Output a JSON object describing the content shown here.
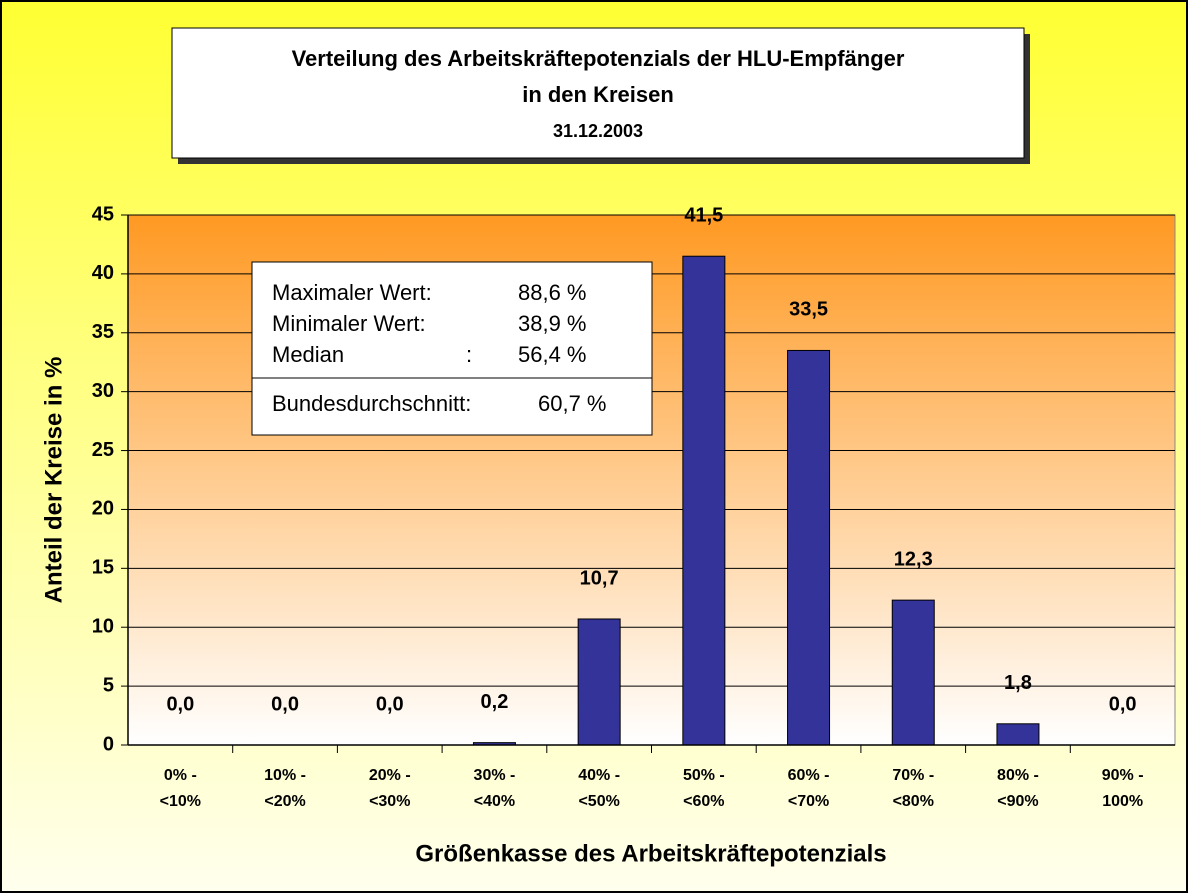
{
  "chart_data": {
    "type": "bar",
    "title_lines": [
      "Verteilung des Arbeitskräftepotenzials der HLU-Empfänger",
      "in den Kreisen"
    ],
    "subtitle": "31.12.2003",
    "x_label": "Größenkasse des Arbeitskräftepotenzials",
    "y_label": "Anteil der Kreise in %",
    "categories": [
      [
        "0% -",
        "<10%"
      ],
      [
        "10% -",
        "<20%"
      ],
      [
        "20% -",
        "<30%"
      ],
      [
        "30% -",
        "<40%"
      ],
      [
        "40% -",
        "<50%"
      ],
      [
        "50% -",
        "<60%"
      ],
      [
        "60% -",
        "<70%"
      ],
      [
        "70% -",
        "<80%"
      ],
      [
        "80% -",
        "<90%"
      ],
      [
        "90% -",
        "100%"
      ]
    ],
    "values": [
      0,
      0,
      0,
      0.2,
      10.7,
      41.5,
      33.5,
      12.3,
      1.8,
      0
    ],
    "value_labels": [
      "0,0",
      "0,0",
      "0,0",
      "0,2",
      "10,7",
      "41,5",
      "33,5",
      "12,3",
      "1,8",
      "0,0"
    ],
    "color": "#333399",
    "ylim": [
      0,
      45
    ],
    "yticks": [
      0,
      5,
      10,
      15,
      20,
      25,
      30,
      35,
      40,
      45
    ],
    "grid": true,
    "annotation": {
      "rows": [
        [
          "Maximaler Wert:",
          "88,6 %"
        ],
        [
          "Minimaler Wert:",
          "38,9 %"
        ],
        [
          "Median",
          ":",
          "56,4 %"
        ]
      ],
      "footer": [
        "Bundesdurchschnitt:",
        "60,7 %"
      ]
    }
  }
}
